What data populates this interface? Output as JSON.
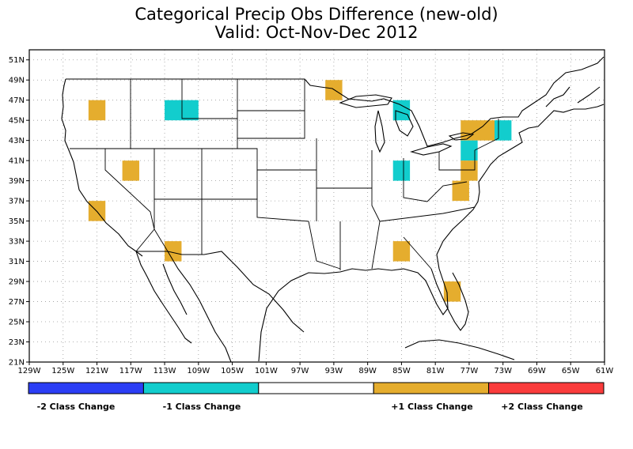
{
  "title": "Categorical Precip Obs Difference (new-old)",
  "subtitle": "Valid: Oct-Nov-Dec 2012",
  "map": {
    "lon_labels": [
      "129W",
      "125W",
      "121W",
      "117W",
      "113W",
      "109W",
      "105W",
      "101W",
      "97W",
      "93W",
      "89W",
      "85W",
      "81W",
      "77W",
      "73W",
      "69W",
      "65W",
      "61W"
    ],
    "lat_labels": [
      "21N",
      "23N",
      "25N",
      "27N",
      "29N",
      "31N",
      "33N",
      "35N",
      "37N",
      "39N",
      "41N",
      "43N",
      "45N",
      "47N",
      "49N",
      "51N"
    ],
    "lon_range": [
      -129,
      -61
    ],
    "lat_range": [
      21,
      52
    ],
    "grid": "dotted"
  },
  "cells": [
    {
      "lon_min": -122,
      "lon_max": -120,
      "lat_min": 45,
      "lat_max": 47,
      "class": 1
    },
    {
      "lon_min": -118,
      "lon_max": -116,
      "lat_min": 39,
      "lat_max": 41,
      "class": 1
    },
    {
      "lon_min": -122,
      "lon_max": -120,
      "lat_min": 35,
      "lat_max": 37,
      "class": 1
    },
    {
      "lon_min": -113,
      "lon_max": -109,
      "lat_min": 45,
      "lat_max": 47,
      "class": -1
    },
    {
      "lon_min": -113,
      "lon_max": -111,
      "lat_min": 31,
      "lat_max": 33,
      "class": 1
    },
    {
      "lon_min": -94,
      "lon_max": -92,
      "lat_min": 47,
      "lat_max": 49,
      "class": 1
    },
    {
      "lon_min": -86,
      "lon_max": -84,
      "lat_min": 45,
      "lat_max": 47,
      "class": -1
    },
    {
      "lon_min": -86,
      "lon_max": -84,
      "lat_min": 39,
      "lat_max": 41,
      "class": -1
    },
    {
      "lon_min": -86,
      "lon_max": -84,
      "lat_min": 31,
      "lat_max": 33,
      "class": 1
    },
    {
      "lon_min": -80,
      "lon_max": -78,
      "lat_min": 27,
      "lat_max": 29,
      "class": 1
    },
    {
      "lon_min": -79,
      "lon_max": -77,
      "lat_min": 37,
      "lat_max": 39,
      "class": 1
    },
    {
      "lon_min": -78,
      "lon_max": -74,
      "lat_min": 43,
      "lat_max": 45,
      "class": 1
    },
    {
      "lon_min": -74,
      "lon_max": -72,
      "lat_min": 43,
      "lat_max": 45,
      "class": -1
    },
    {
      "lon_min": -78,
      "lon_max": -76,
      "lat_min": 41,
      "lat_max": 43,
      "class": -1
    },
    {
      "lon_min": -78,
      "lon_max": -76,
      "lat_min": 39,
      "lat_max": 41,
      "class": 1
    }
  ],
  "legend": {
    "classes": [
      {
        "value": -2,
        "color": "#2b3ef5",
        "label": "-2 Class Change"
      },
      {
        "value": -1,
        "color": "#12cdcd",
        "label": "-1 Class Change"
      },
      {
        "value": 0,
        "color": "#ffffff",
        "label": ""
      },
      {
        "value": 1,
        "color": "#e5ad2e",
        "label": "+1 Class Change"
      },
      {
        "value": 2,
        "color": "#fa3c3c",
        "label": "+2 Class Change"
      }
    ]
  }
}
